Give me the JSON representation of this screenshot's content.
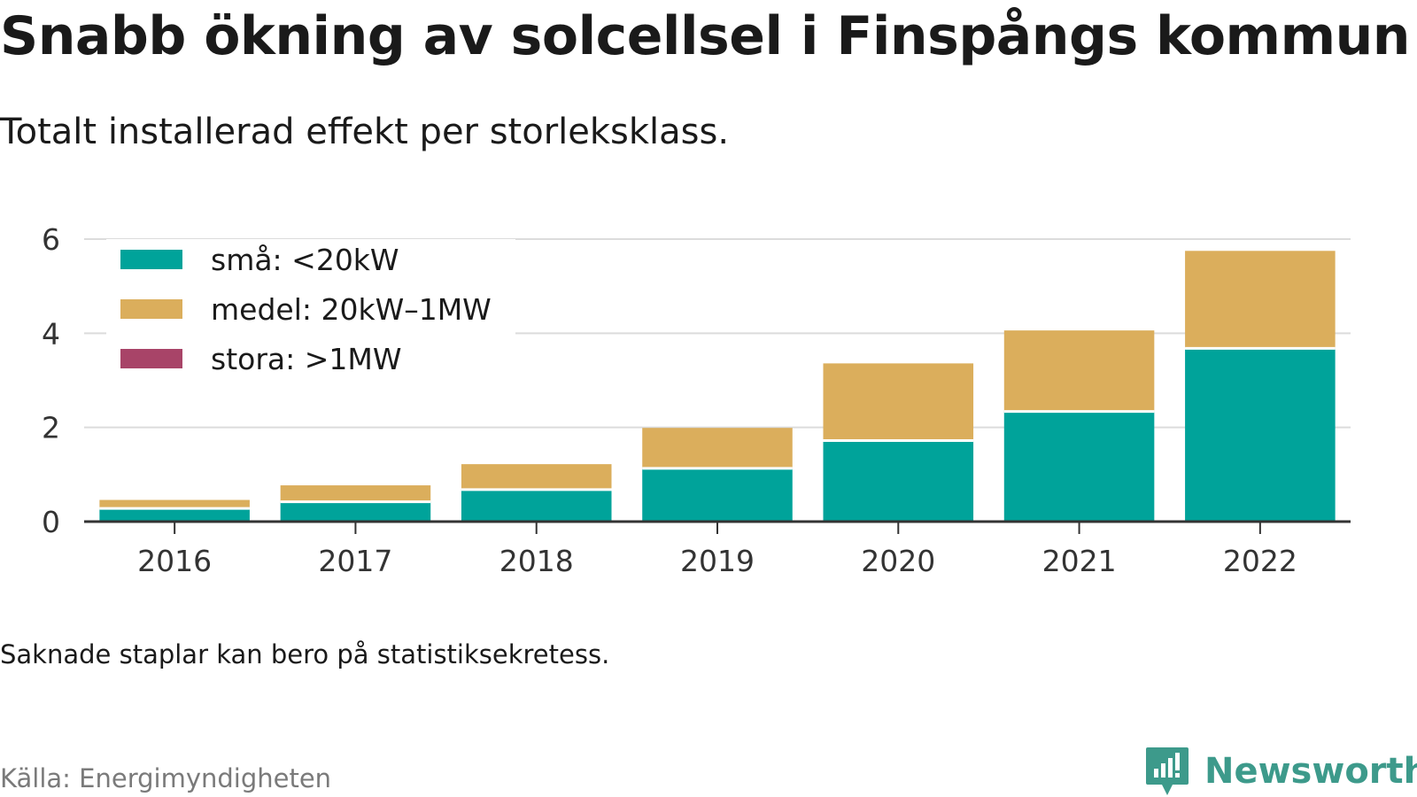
{
  "title": "Snabb ökning av solcellsel i Finspångs kommun",
  "subtitle": "Totalt installerad effekt per storleksklass.",
  "note": "Saknade staplar kan bero på statistiksekretess.",
  "source": "Källa: Energimyndigheten",
  "brand": {
    "name": "Newsworthy",
    "icon": "newsworthy-logo-icon",
    "color": "#3d9a8b"
  },
  "chart_data": {
    "type": "bar",
    "stacked": true,
    "categories": [
      "2016",
      "2017",
      "2018",
      "2019",
      "2020",
      "2021",
      "2022"
    ],
    "series": [
      {
        "name": "små: <20kW",
        "color": "#00a39a",
        "values": [
          0.28,
          0.42,
          0.68,
          1.13,
          1.72,
          2.34,
          3.68
        ]
      },
      {
        "name": "medel: 20kW–1MW",
        "color": "#dbae5c",
        "values": [
          0.18,
          0.35,
          0.54,
          0.86,
          1.64,
          1.72,
          2.07
        ]
      },
      {
        "name": "stora: >1MW",
        "color": "#a84468",
        "values": [
          0,
          0,
          0,
          0,
          0,
          0,
          0
        ]
      }
    ],
    "ylim": [
      0,
      6
    ],
    "yticks": [
      "0",
      "2",
      "4",
      "6"
    ],
    "grid": true,
    "legend_position": "top-left",
    "xlabel": "",
    "ylabel": ""
  }
}
